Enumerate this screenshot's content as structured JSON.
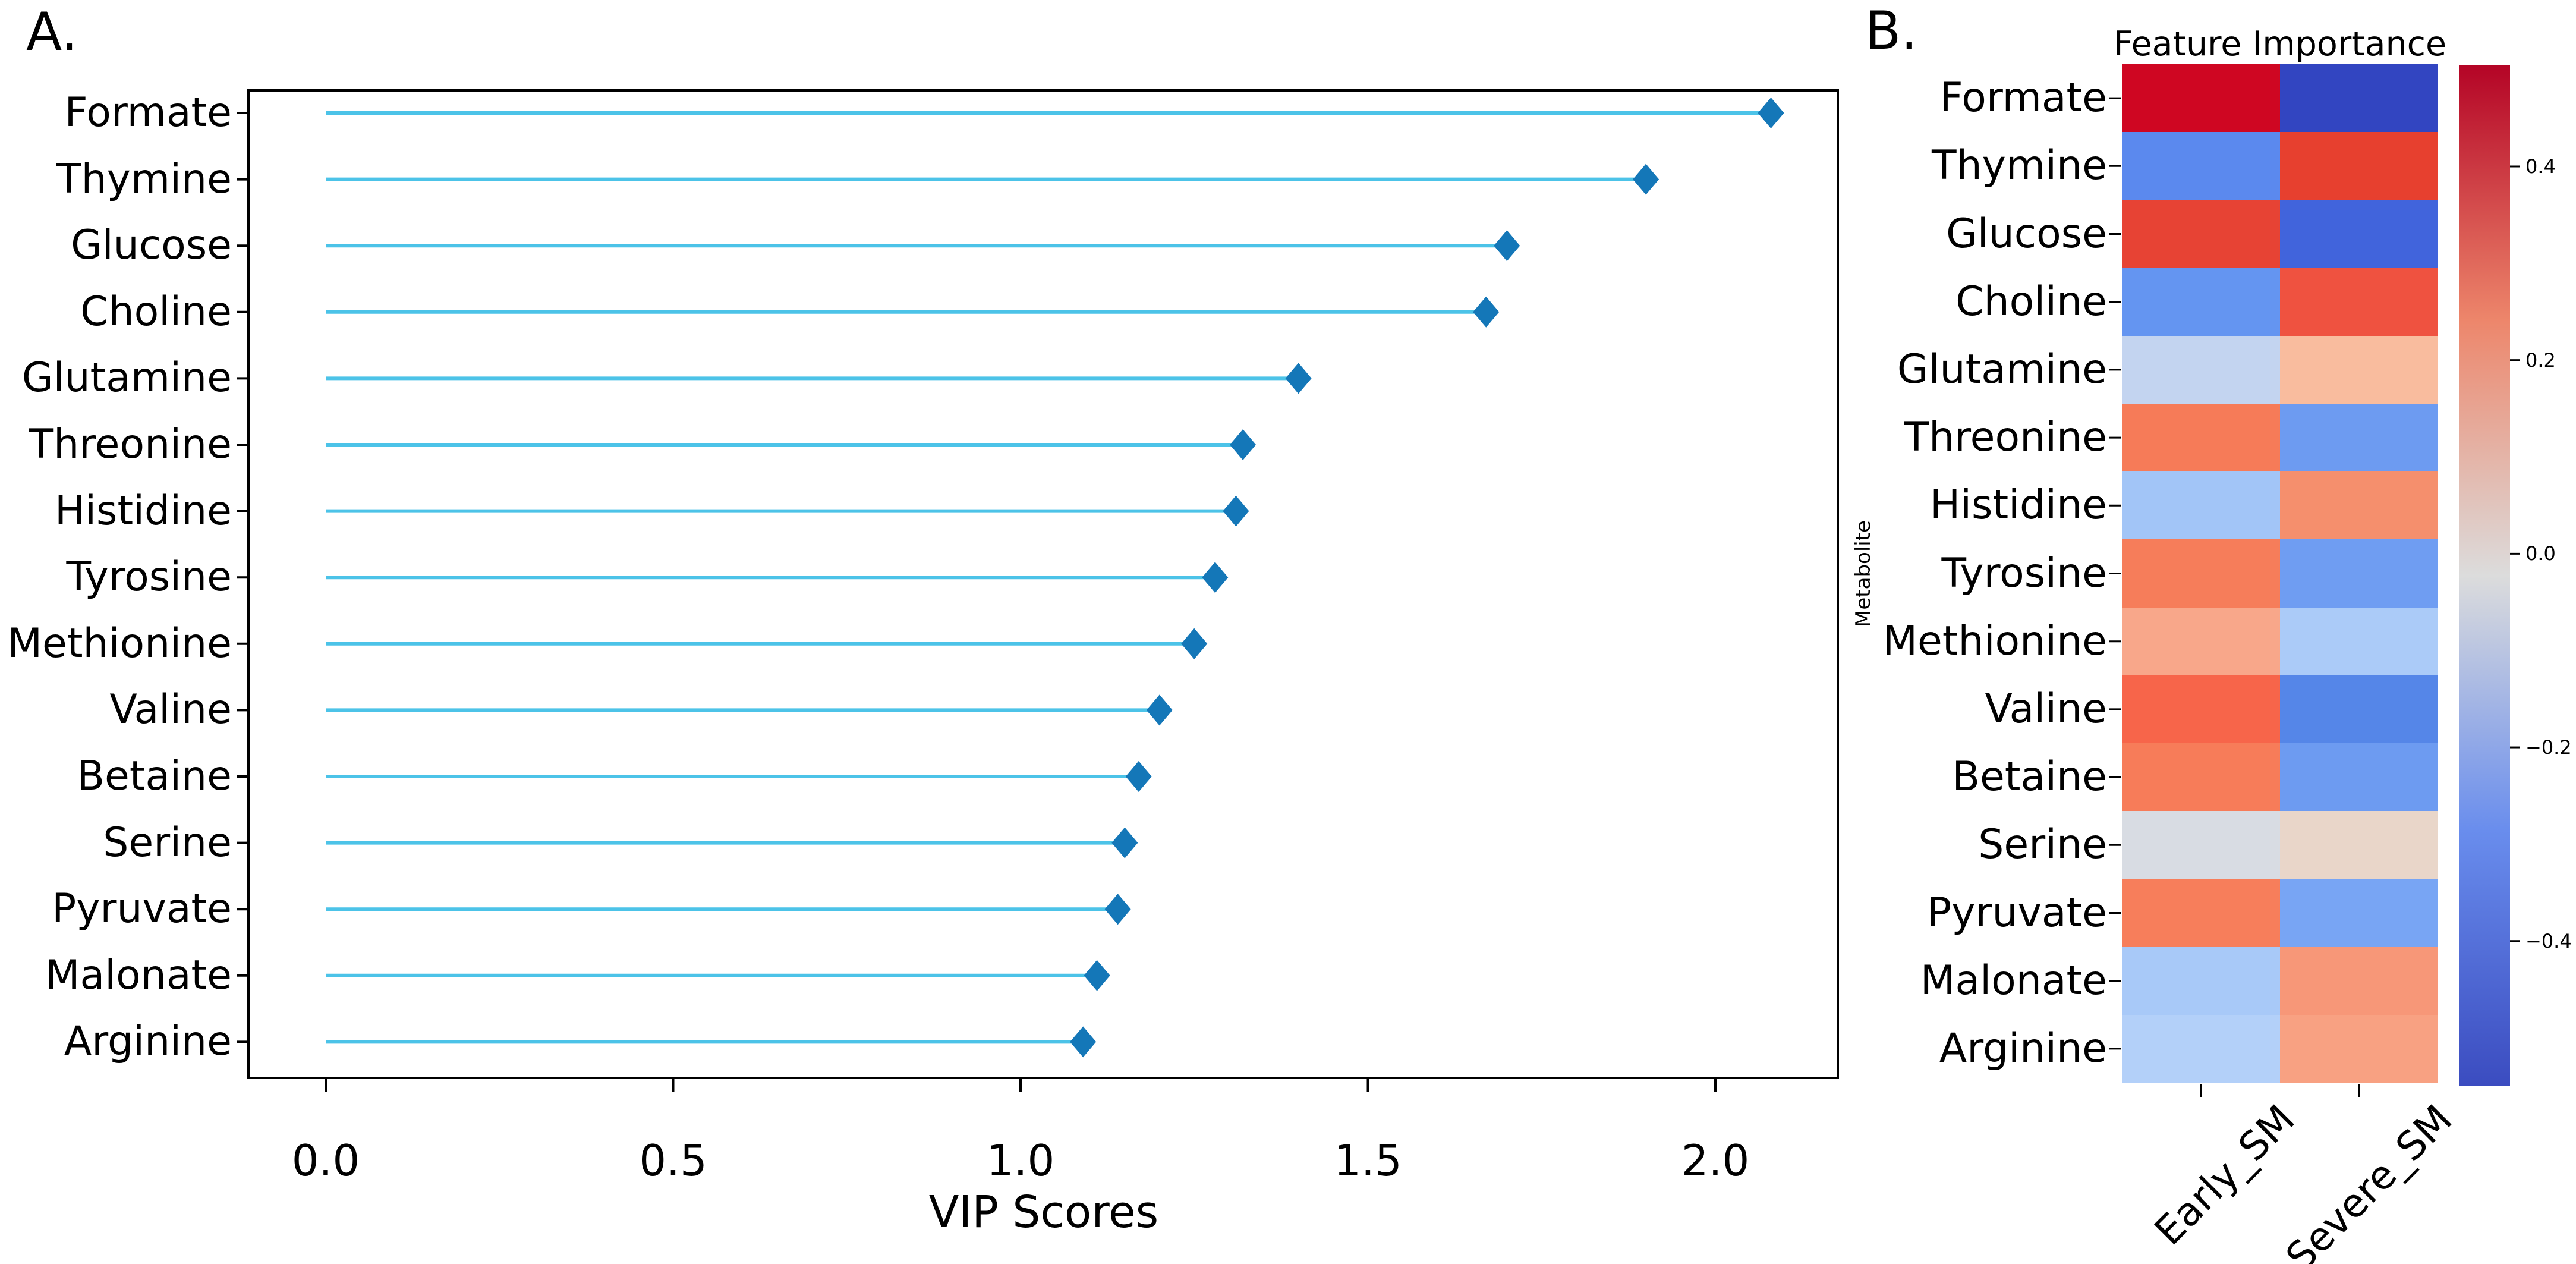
{
  "figure": {
    "panel_a_label": "A.",
    "panel_b_label": "B."
  },
  "colors": {
    "stem": "#4cc3e8",
    "marker": "#1477b8",
    "axis": "#000000",
    "text": "#000000"
  },
  "chart_data": [
    {
      "type": "scatter",
      "subtype": "lollipop",
      "xlabel": "VIP Scores",
      "categories": [
        "Formate",
        "Thymine",
        "Glucose",
        "Choline",
        "Glutamine",
        "Threonine",
        "Histidine",
        "Tyrosine",
        "Methionine",
        "Valine",
        "Betaine",
        "Serine",
        "Pyruvate",
        "Malonate",
        "Arginine"
      ],
      "values": [
        2.08,
        1.9,
        1.7,
        1.67,
        1.4,
        1.32,
        1.31,
        1.28,
        1.25,
        1.2,
        1.17,
        1.15,
        1.14,
        1.11,
        1.09
      ],
      "xlim": [
        -0.104,
        2.184
      ],
      "x_tick_values": [
        0.0,
        0.5,
        1.0,
        1.5,
        2.0
      ],
      "x_tick_labels": [
        "0.0",
        "0.5",
        "1.0",
        "1.5",
        "2.0"
      ],
      "marker": "thin-diamond",
      "grid": false,
      "legend": "none"
    },
    {
      "type": "heatmap",
      "title": "Feature Importance",
      "ylabel": "Metabolite",
      "rows": [
        "Formate",
        "Thymine",
        "Glucose",
        "Choline",
        "Glutamine",
        "Threonine",
        "Histidine",
        "Tyrosine",
        "Methionine",
        "Valine",
        "Betaine",
        "Serine",
        "Pyruvate",
        "Malonate",
        "Arginine"
      ],
      "columns": [
        "Early_SM",
        "Severe_SM"
      ],
      "values": [
        [
          0.5,
          -0.55
        ],
        [
          -0.28,
          0.42
        ],
        [
          0.43,
          -0.38
        ],
        [
          -0.25,
          0.4
        ],
        [
          -0.1,
          0.13
        ],
        [
          0.29,
          -0.24
        ],
        [
          -0.17,
          0.25
        ],
        [
          0.28,
          -0.23
        ],
        [
          0.19,
          -0.15
        ],
        [
          0.33,
          -0.3
        ],
        [
          0.28,
          -0.24
        ],
        [
          0.02,
          0.06
        ],
        [
          0.28,
          -0.21
        ],
        [
          -0.16,
          0.23
        ],
        [
          -0.13,
          0.19
        ]
      ],
      "cell_colors": [
        [
          "#cf0622",
          "#3245c1"
        ],
        [
          "#5b89ee",
          "#e7402f"
        ],
        [
          "#e74334",
          "#4164dc"
        ],
        [
          "#6495f1",
          "#ef5240"
        ],
        [
          "#c3d4f0",
          "#f9bc9e"
        ],
        [
          "#f67b58",
          "#6d9bf1"
        ],
        [
          "#a2c5f7",
          "#f58f6d"
        ],
        [
          "#f67d5a",
          "#6f9df2"
        ],
        [
          "#f8a78a",
          "#abcbf8"
        ],
        [
          "#f7654a",
          "#5586e8"
        ],
        [
          "#f77c59",
          "#6d9bf1"
        ],
        [
          "#d8dce3",
          "#e9d6c9"
        ],
        [
          "#f77e5b",
          "#78a5f4"
        ],
        [
          "#a8c9f8",
          "#f79778"
        ],
        [
          "#b3d0f9",
          "#f8a182"
        ]
      ],
      "colorbar": {
        "vmin": -0.55,
        "vmax": 0.505,
        "tick_values": [
          0.4,
          0.2,
          0.0,
          -0.2,
          -0.4
        ],
        "tick_labels": [
          "0.4",
          "0.2",
          "0.0",
          "−0.2",
          "−0.4"
        ],
        "colormap": "coolwarm",
        "colormap_stops": [
          "#b40426",
          "#ed866b",
          "#dcdcdc",
          "#698ded",
          "#3b4cc0"
        ]
      },
      "grid": false,
      "legend": "colorbar-right"
    }
  ]
}
